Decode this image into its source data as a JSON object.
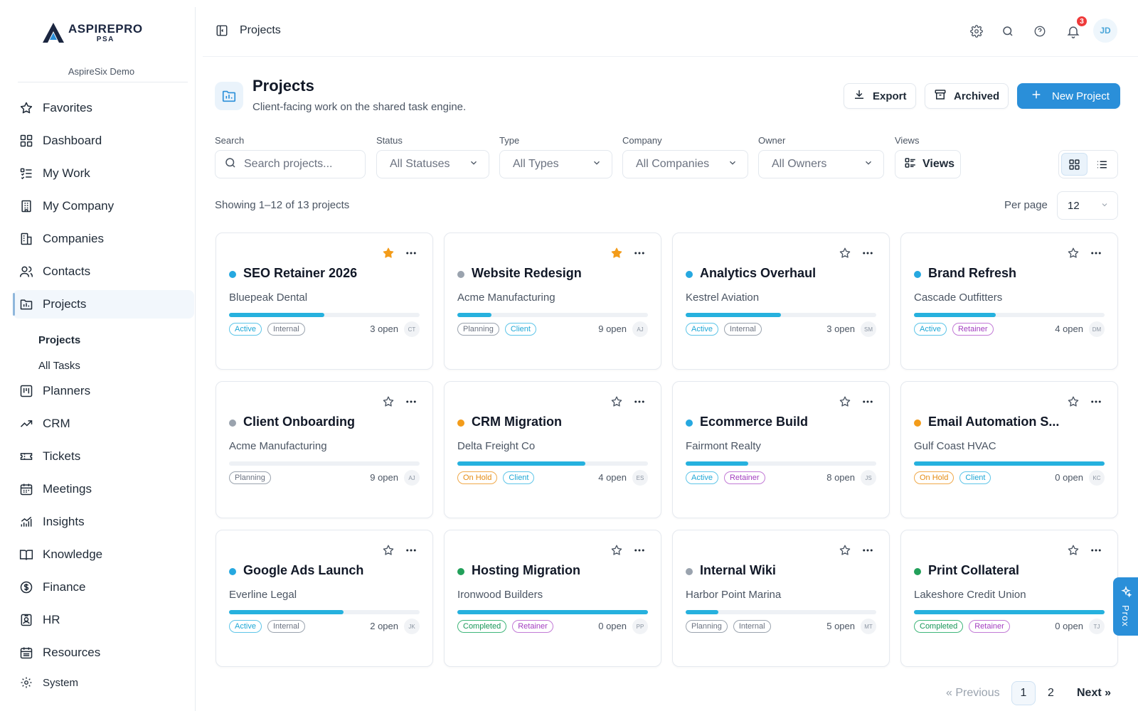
{
  "brand": {
    "name": "ASPIREPRO",
    "sub": "PSA",
    "org": "AspireSix Demo"
  },
  "sidebar": {
    "items": [
      {
        "label": "Favorites",
        "icon": "star-icon"
      },
      {
        "label": "Dashboard",
        "icon": "grid-icon"
      },
      {
        "label": "My Work",
        "icon": "list-check-icon"
      },
      {
        "label": "My Company",
        "icon": "building-icon"
      },
      {
        "label": "Companies",
        "icon": "buildings-icon"
      },
      {
        "label": "Contacts",
        "icon": "users-icon"
      },
      {
        "label": "Projects",
        "icon": "folder-icon"
      },
      {
        "label": "Planners",
        "icon": "kanban-icon"
      },
      {
        "label": "CRM",
        "icon": "trend-icon"
      },
      {
        "label": "Tickets",
        "icon": "ticket-icon"
      },
      {
        "label": "Meetings",
        "icon": "calendar-icon"
      },
      {
        "label": "Insights",
        "icon": "chart-icon"
      },
      {
        "label": "Knowledge",
        "icon": "book-icon"
      },
      {
        "label": "Finance",
        "icon": "dollar-icon"
      },
      {
        "label": "HR",
        "icon": "id-badge-icon"
      },
      {
        "label": "Resources",
        "icon": "calendar-grid-icon"
      },
      {
        "label": "System",
        "icon": "gear-icon"
      }
    ],
    "subitems": [
      {
        "label": "Projects"
      },
      {
        "label": "All Tasks"
      }
    ]
  },
  "topbar": {
    "breadcrumb": "Projects",
    "notification_count": "3",
    "avatar_initials": "JD"
  },
  "header": {
    "title": "Projects",
    "subtitle": "Client-facing work on the shared task engine.",
    "export_label": "Export",
    "archived_label": "Archived",
    "new_label": "New Project"
  },
  "filters": {
    "search_label": "Search",
    "search_placeholder": "Search projects...",
    "status_label": "Status",
    "status_value": "All Statuses",
    "type_label": "Type",
    "type_value": "All Types",
    "company_label": "Company",
    "company_value": "All Companies",
    "owner_label": "Owner",
    "owner_value": "All Owners",
    "views_label": "Views",
    "views_value": "Views"
  },
  "list": {
    "showing": "Showing 1–12 of 13 projects",
    "per_page_label": "Per page",
    "per_page_value": "12"
  },
  "colors": {
    "accent": "#2a8fd9",
    "progress": "#26b1de",
    "dot_blue": "#26a8e0",
    "dot_gray": "#9aa3ae",
    "dot_orange": "#f39c1a",
    "dot_green": "#22a05a",
    "star_filled": "#f39c1a"
  },
  "projects": [
    {
      "title": "SEO Retainer 2026",
      "company": "Bluepeak Dental",
      "dot": "#26a8e0",
      "progress": 0.5,
      "favorite": true,
      "tags": [
        {
          "label": "Active",
          "kind": "active"
        },
        {
          "label": "Internal",
          "kind": "internal"
        }
      ],
      "open": "3 open",
      "owner": "CT"
    },
    {
      "title": "Website Redesign",
      "company": "Acme Manufacturing",
      "dot": "#9aa3ae",
      "progress": 0.18,
      "favorite": true,
      "tags": [
        {
          "label": "Planning",
          "kind": "planning"
        },
        {
          "label": "Client",
          "kind": "client"
        }
      ],
      "open": "9 open",
      "owner": "AJ"
    },
    {
      "title": "Analytics Overhaul",
      "company": "Kestrel Aviation",
      "dot": "#26a8e0",
      "progress": 0.5,
      "favorite": false,
      "tags": [
        {
          "label": "Active",
          "kind": "active"
        },
        {
          "label": "Internal",
          "kind": "internal"
        }
      ],
      "open": "3 open",
      "owner": "SM"
    },
    {
      "title": "Brand Refresh",
      "company": "Cascade Outfitters",
      "dot": "#26a8e0",
      "progress": 0.43,
      "favorite": false,
      "tags": [
        {
          "label": "Active",
          "kind": "active"
        },
        {
          "label": "Retainer",
          "kind": "retainer"
        }
      ],
      "open": "4 open",
      "owner": "DM"
    },
    {
      "title": "Client Onboarding",
      "company": "Acme Manufacturing",
      "dot": "#9aa3ae",
      "progress": 0.0,
      "favorite": false,
      "tags": [
        {
          "label": "Planning",
          "kind": "planning"
        }
      ],
      "open": "9 open",
      "owner": "AJ"
    },
    {
      "title": "CRM Migration",
      "company": "Delta Freight Co",
      "dot": "#f39c1a",
      "progress": 0.67,
      "favorite": false,
      "tags": [
        {
          "label": "On Hold",
          "kind": "onhold"
        },
        {
          "label": "Client",
          "kind": "client"
        }
      ],
      "open": "4 open",
      "owner": "ES"
    },
    {
      "title": "Ecommerce Build",
      "company": "Fairmont Realty",
      "dot": "#26a8e0",
      "progress": 0.33,
      "favorite": false,
      "tags": [
        {
          "label": "Active",
          "kind": "active"
        },
        {
          "label": "Retainer",
          "kind": "retainer"
        }
      ],
      "open": "8 open",
      "owner": "JS"
    },
    {
      "title": "Email Automation S...",
      "company": "Gulf Coast HVAC",
      "dot": "#f39c1a",
      "progress": 1.0,
      "favorite": false,
      "tags": [
        {
          "label": "On Hold",
          "kind": "onhold"
        },
        {
          "label": "Client",
          "kind": "client"
        }
      ],
      "open": "0 open",
      "owner": "KC"
    },
    {
      "title": "Google Ads Launch",
      "company": "Everline Legal",
      "dot": "#26a8e0",
      "progress": 0.6,
      "favorite": false,
      "tags": [
        {
          "label": "Active",
          "kind": "active"
        },
        {
          "label": "Internal",
          "kind": "internal"
        }
      ],
      "open": "2 open",
      "owner": "JK"
    },
    {
      "title": "Hosting Migration",
      "company": "Ironwood Builders",
      "dot": "#22a05a",
      "progress": 1.0,
      "favorite": false,
      "tags": [
        {
          "label": "Completed",
          "kind": "completed"
        },
        {
          "label": "Retainer",
          "kind": "retainer"
        }
      ],
      "open": "0 open",
      "owner": "PP"
    },
    {
      "title": "Internal Wiki",
      "company": "Harbor Point Marina",
      "dot": "#9aa3ae",
      "progress": 0.17,
      "favorite": false,
      "tags": [
        {
          "label": "Planning",
          "kind": "planning"
        },
        {
          "label": "Internal",
          "kind": "internal"
        }
      ],
      "open": "5 open",
      "owner": "MT"
    },
    {
      "title": "Print Collateral",
      "company": "Lakeshore Credit Union",
      "dot": "#22a05a",
      "progress": 1.0,
      "favorite": false,
      "tags": [
        {
          "label": "Completed",
          "kind": "completed"
        },
        {
          "label": "Retainer",
          "kind": "retainer"
        }
      ],
      "open": "0 open",
      "owner": "TJ"
    }
  ],
  "pagination": {
    "previous": "« Previous",
    "page1": "1",
    "page2": "2",
    "next": "Next »"
  },
  "prox": {
    "label": "Prox"
  }
}
